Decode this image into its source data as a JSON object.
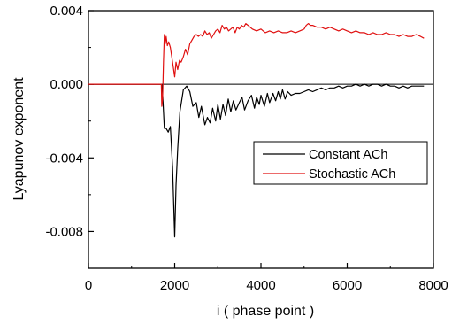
{
  "chart_data": {
    "type": "line",
    "xlabel": "i ( phase point )",
    "ylabel": "Lyapunov exponent",
    "xlim": [
      0,
      8000
    ],
    "ylim": [
      -0.01,
      0.004
    ],
    "xticks": [
      {
        "value": 0,
        "label": "0"
      },
      {
        "value": 2000,
        "label": "2000"
      },
      {
        "value": 4000,
        "label": "4000"
      },
      {
        "value": 6000,
        "label": "6000"
      },
      {
        "value": 8000,
        "label": "8000"
      }
    ],
    "yticks": [
      {
        "value": 0.004,
        "label": "0.004"
      },
      {
        "value": 0.0,
        "label": "0.000"
      },
      {
        "value": -0.004,
        "label": "-0.004"
      },
      {
        "value": -0.008,
        "label": "-0.008"
      }
    ],
    "grid": false,
    "legend_position": "center-right",
    "zero_line": true,
    "series": [
      {
        "name": "Constant ACh",
        "color": "#000000",
        "x": [
          0,
          1700,
          1720,
          1760,
          1800,
          1850,
          1900,
          1950,
          2000,
          2030,
          2070,
          2120,
          2200,
          2280,
          2350,
          2420,
          2500,
          2560,
          2620,
          2700,
          2760,
          2820,
          2880,
          2950,
          3000,
          3060,
          3120,
          3180,
          3240,
          3300,
          3360,
          3420,
          3500,
          3560,
          3620,
          3700,
          3780,
          3850,
          3900,
          3960,
          4000,
          4080,
          4150,
          4200,
          4280,
          4340,
          4400,
          4450,
          4500,
          4560,
          4620,
          4700,
          4800,
          4900,
          5000,
          5100,
          5200,
          5300,
          5400,
          5500,
          5600,
          5700,
          5800,
          5900,
          6000,
          6100,
          6200,
          6300,
          6400,
          6500,
          6600,
          6700,
          6800,
          6900,
          7000,
          7100,
          7200,
          7300,
          7400,
          7500,
          7600,
          7700,
          7780
        ],
        "y": [
          0.0,
          0.0,
          -0.0005,
          -0.0024,
          -0.0024,
          -0.0026,
          -0.0023,
          -0.0045,
          -0.0083,
          -0.0055,
          -0.0035,
          -0.0015,
          -0.0003,
          -0.0001,
          -0.0004,
          -0.0012,
          -0.001,
          -0.0018,
          -0.0012,
          -0.0022,
          -0.0018,
          -0.0021,
          -0.0013,
          -0.002,
          -0.0011,
          -0.0019,
          -0.0011,
          -0.0017,
          -0.0008,
          -0.0015,
          -0.0009,
          -0.0014,
          -0.001,
          -0.0007,
          -0.0014,
          -0.0009,
          -0.0006,
          -0.0013,
          -0.0007,
          -0.0011,
          -0.0006,
          -0.0012,
          -0.0005,
          -0.001,
          -0.0005,
          -0.0009,
          -0.0004,
          -0.0008,
          -0.0003,
          -0.0008,
          -0.0004,
          -0.0006,
          -0.0005,
          -0.0005,
          -0.0004,
          -0.0003,
          -0.0004,
          -0.0003,
          -0.0002,
          -0.0003,
          -0.0002,
          -0.0002,
          -0.0001,
          -0.0002,
          -0.0001,
          -0.0001,
          0.0,
          -0.0001,
          0.0,
          -0.0001,
          0.0,
          0.0,
          -0.0001,
          0.0,
          -0.0001,
          -0.0001,
          -0.0002,
          -0.0001,
          -0.0002,
          -0.0001,
          -0.0001,
          -0.0001,
          -0.0001
        ]
      },
      {
        "name": "Stochastic ACh",
        "color": "#e01010",
        "x": [
          0,
          1690,
          1700,
          1720,
          1740,
          1760,
          1780,
          1800,
          1830,
          1860,
          1900,
          1950,
          2000,
          2030,
          2070,
          2110,
          2150,
          2200,
          2250,
          2300,
          2350,
          2400,
          2450,
          2500,
          2550,
          2600,
          2650,
          2700,
          2750,
          2800,
          2850,
          2900,
          2950,
          3000,
          3050,
          3100,
          3150,
          3200,
          3250,
          3300,
          3350,
          3400,
          3450,
          3500,
          3550,
          3600,
          3650,
          3700,
          3750,
          3800,
          3900,
          4000,
          4100,
          4200,
          4300,
          4400,
          4500,
          4600,
          4700,
          4800,
          4900,
          5000,
          5050,
          5100,
          5150,
          5200,
          5300,
          5400,
          5500,
          5600,
          5700,
          5800,
          5900,
          6000,
          6100,
          6200,
          6300,
          6400,
          6500,
          6600,
          6700,
          6800,
          6900,
          7000,
          7100,
          7200,
          7300,
          7400,
          7500,
          7600,
          7700,
          7780
        ],
        "y": [
          0.0,
          0.0,
          -0.0012,
          -0.0008,
          0.0012,
          0.0027,
          0.0022,
          0.0026,
          0.0021,
          0.0023,
          0.002,
          0.0012,
          0.0004,
          0.0012,
          0.0008,
          0.0013,
          0.0012,
          0.0015,
          0.0019,
          0.0016,
          0.0022,
          0.0024,
          0.0026,
          0.0027,
          0.0026,
          0.0027,
          0.0026,
          0.0029,
          0.0027,
          0.0028,
          0.0025,
          0.0027,
          0.0029,
          0.003,
          0.0028,
          0.0032,
          0.003,
          0.0031,
          0.0029,
          0.003,
          0.0031,
          0.0028,
          0.0031,
          0.003,
          0.0032,
          0.0031,
          0.0033,
          0.0032,
          0.0031,
          0.003,
          0.0029,
          0.003,
          0.0028,
          0.0029,
          0.0028,
          0.0029,
          0.0028,
          0.0028,
          0.0029,
          0.0028,
          0.0029,
          0.003,
          0.0032,
          0.0033,
          0.0032,
          0.0032,
          0.0031,
          0.0031,
          0.003,
          0.0031,
          0.003,
          0.0029,
          0.003,
          0.0029,
          0.0028,
          0.0029,
          0.0028,
          0.0028,
          0.0027,
          0.0028,
          0.0027,
          0.0027,
          0.0028,
          0.0027,
          0.0027,
          0.0026,
          0.0027,
          0.0026,
          0.0026,
          0.0027,
          0.0026,
          0.0025
        ]
      }
    ]
  }
}
